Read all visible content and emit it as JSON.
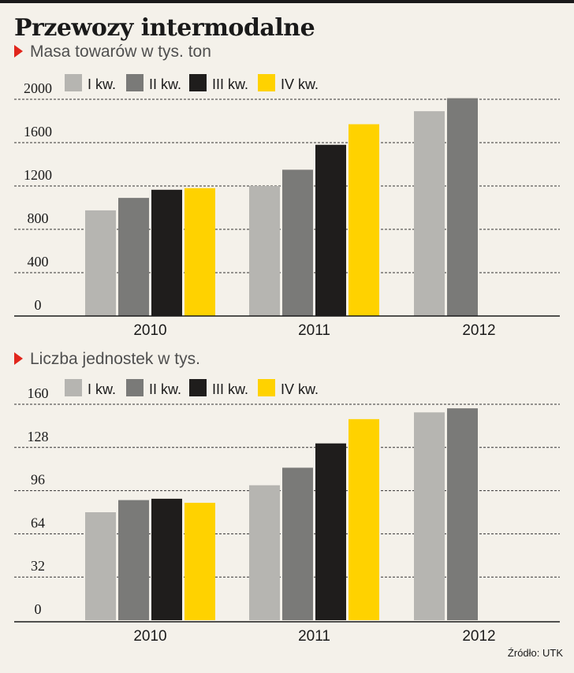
{
  "title": "Przewozy intermodalne",
  "source": "Źródło: UTK",
  "colors": {
    "marker": "#e1261c",
    "series": [
      "#b6b5b1",
      "#7a7a78",
      "#1f1d1c",
      "#ffd200"
    ],
    "grid": "#333333",
    "axis": "#1a1a1a"
  },
  "chart_data": [
    {
      "type": "bar",
      "title": "Masa towarów w tys. ton",
      "categories": [
        "2010",
        "2011",
        "2012"
      ],
      "ylim": [
        0,
        2000
      ],
      "yticks": [
        "0",
        "400",
        "800",
        "1200",
        "1600",
        "2000"
      ],
      "grid": true,
      "legend_position": "top",
      "series": [
        {
          "name": "I kw.",
          "values": [
            975,
            1200,
            1890
          ]
        },
        {
          "name": "II kw.",
          "values": [
            1090,
            1350,
            2010
          ]
        },
        {
          "name": "III kw.",
          "values": [
            1165,
            1580,
            null
          ]
        },
        {
          "name": "IV kw.",
          "values": [
            1180,
            1770,
            null
          ]
        }
      ]
    },
    {
      "type": "bar",
      "title": "Liczba jednostek w tys.",
      "categories": [
        "2010",
        "2011",
        "2012"
      ],
      "ylim": [
        0,
        160
      ],
      "yticks": [
        "0",
        "32",
        "64",
        "96",
        "128",
        "160"
      ],
      "grid": true,
      "legend_position": "top",
      "series": [
        {
          "name": "I kw.",
          "values": [
            80,
            100,
            154
          ]
        },
        {
          "name": "II kw.",
          "values": [
            89,
            113,
            157
          ]
        },
        {
          "name": "III kw.",
          "values": [
            90,
            131,
            null
          ]
        },
        {
          "name": "IV kw.",
          "values": [
            87,
            149,
            null
          ]
        }
      ]
    }
  ]
}
